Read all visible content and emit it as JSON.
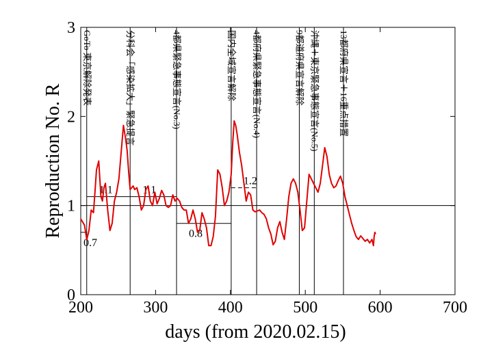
{
  "chart_data": {
    "type": "line",
    "title": "",
    "xlabel": "days   (from 2020.02.15)",
    "ylabel": "Reproduction No.  R",
    "xlim": [
      200,
      700
    ],
    "ylim": [
      0,
      3
    ],
    "xticks": [
      200,
      300,
      400,
      500,
      600,
      700
    ],
    "yticks": [
      0,
      1,
      2,
      3
    ],
    "grid": false,
    "series": [
      {
        "color": "#e00000",
        "x": [
          200,
          205,
          208,
          211,
          214,
          217,
          219,
          221,
          224,
          227,
          229,
          231,
          233,
          236,
          239,
          242,
          245,
          248,
          251,
          254,
          257,
          260,
          262,
          264,
          266,
          268,
          270,
          272,
          275,
          278,
          281,
          284,
          287,
          290,
          293,
          296,
          299,
          302,
          305,
          308,
          311,
          314,
          317,
          320,
          323,
          326,
          329,
          332,
          335,
          338,
          341,
          344,
          347,
          350,
          353,
          356,
          359,
          362,
          365,
          368,
          371,
          374,
          377,
          380,
          383,
          386,
          389,
          392,
          395,
          398,
          401,
          403,
          405,
          407,
          409,
          412,
          415,
          418,
          421,
          424,
          427,
          430,
          433,
          436,
          439,
          442,
          445,
          448,
          451,
          454,
          457,
          460,
          463,
          466,
          469,
          472,
          475,
          478,
          481,
          484,
          487,
          490,
          493,
          496,
          499,
          502,
          505,
          508,
          511,
          514,
          517,
          520,
          523,
          526,
          529,
          532,
          535,
          538,
          541,
          544,
          547,
          550,
          553,
          556,
          559,
          562,
          565,
          568,
          571,
          574,
          577,
          580,
          583,
          586,
          589,
          591,
          592,
          593,
          594
        ],
        "y": [
          0.85,
          0.78,
          0.62,
          0.72,
          0.95,
          0.92,
          1.15,
          1.4,
          1.5,
          1.1,
          1.05,
          1.2,
          1.25,
          0.95,
          0.72,
          0.8,
          1.05,
          1.15,
          1.3,
          1.6,
          1.9,
          1.75,
          1.62,
          1.38,
          1.18,
          1.2,
          1.22,
          1.18,
          1.2,
          1.1,
          0.95,
          1.0,
          1.18,
          1.22,
          1.05,
          1.0,
          1.15,
          1.02,
          1.08,
          1.17,
          1.12,
          1.0,
          0.98,
          1.0,
          1.12,
          1.05,
          1.08,
          1.05,
          0.98,
          0.95,
          0.95,
          0.8,
          0.85,
          0.95,
          0.85,
          0.7,
          0.72,
          0.92,
          0.85,
          0.75,
          0.55,
          0.55,
          0.65,
          0.88,
          1.4,
          1.35,
          1.2,
          1.0,
          1.05,
          1.15,
          1.35,
          1.7,
          1.95,
          1.9,
          1.8,
          1.6,
          1.45,
          1.25,
          1.05,
          1.15,
          1.12,
          0.95,
          0.93,
          0.94,
          0.95,
          0.92,
          0.9,
          0.85,
          0.75,
          0.68,
          0.56,
          0.6,
          0.75,
          0.82,
          0.7,
          0.62,
          0.85,
          1.1,
          1.25,
          1.3,
          1.25,
          1.15,
          0.95,
          0.72,
          0.75,
          1.05,
          1.35,
          1.3,
          1.25,
          1.2,
          1.15,
          1.25,
          1.45,
          1.65,
          1.55,
          1.35,
          1.25,
          1.2,
          1.22,
          1.28,
          1.33,
          1.25,
          1.1,
          1.0,
          0.9,
          0.8,
          0.72,
          0.65,
          0.62,
          0.66,
          0.63,
          0.6,
          0.62,
          0.58,
          0.62,
          0.55,
          0.65,
          0.7,
          0.68
        ]
      }
    ],
    "reference_line": {
      "y": 1.0
    },
    "event_markers": [
      {
        "x": 208,
        "label": "GoTo 東京解除発表"
      },
      {
        "x": 266,
        "label": "分科会「感染拡大」緊急提言"
      },
      {
        "x": 328,
        "label": "4都県緊急事態宣言(No.3)"
      },
      {
        "x": 401,
        "label": "国内全域宣言解除"
      },
      {
        "x": 435,
        "label": "4都府県緊急事態宣言(No.4)"
      },
      {
        "x": 492,
        "label": "9都道府県宣言解除"
      },
      {
        "x": 512,
        "label": "沖縄＋東京緊急事態宣言(No.5)"
      },
      {
        "x": 551,
        "label": "13都府県宣言＋16重点措置"
      }
    ],
    "segments": [
      {
        "x1": 200,
        "x2": 208,
        "y": 0.7,
        "label": "0.7",
        "dashed": false
      },
      {
        "x1": 208,
        "x2": 266,
        "y": 1.1,
        "label": "1.1",
        "dashed": false
      },
      {
        "x1": 266,
        "x2": 328,
        "y": 1.1,
        "label": "1.1",
        "dashed": false
      },
      {
        "x1": 328,
        "x2": 401,
        "y": 0.8,
        "label": "0.8",
        "dashed": false
      },
      {
        "x1": 401,
        "x2": 435,
        "y": 1.2,
        "label": "1.2",
        "dashed": true
      }
    ]
  }
}
